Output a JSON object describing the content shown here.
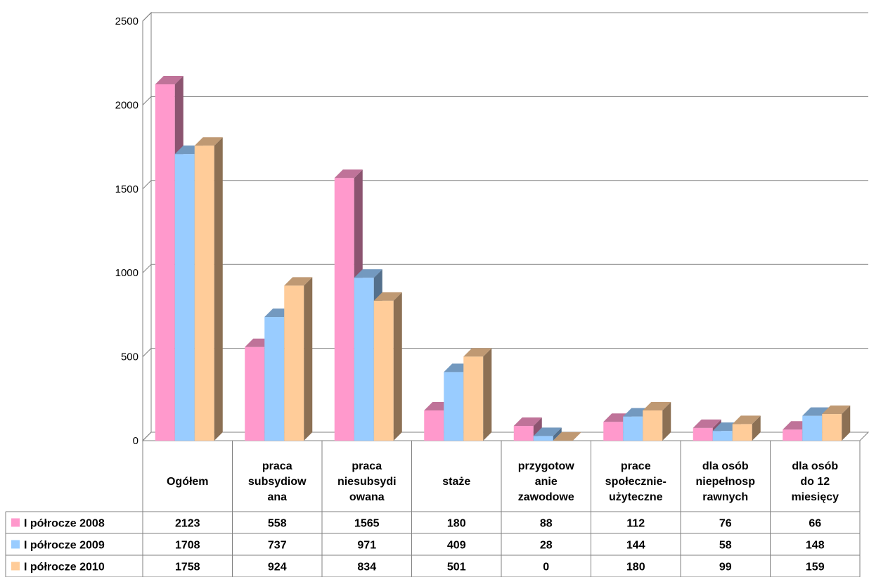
{
  "chart_data": {
    "type": "bar",
    "title": "",
    "xlabel": "",
    "ylabel": "",
    "ylim": [
      0,
      2500
    ],
    "yticks": [
      0,
      500,
      1000,
      1500,
      2000,
      2500
    ],
    "grid": true,
    "legend": "left of data table",
    "categories": [
      [
        "Ogółem"
      ],
      [
        "praca",
        "subsydiow",
        "ana"
      ],
      [
        "praca",
        "niesubsydi",
        "owana"
      ],
      [
        "staże"
      ],
      [
        "przygotow",
        "anie",
        "zawodowe"
      ],
      [
        "prace",
        "społecznie-",
        "użyteczne"
      ],
      [
        "dla osób",
        "niepełnosp",
        "rawnych"
      ],
      [
        "dla osób",
        "do 12",
        "miesięcy"
      ]
    ],
    "series": [
      {
        "name": "I półrocze 2008",
        "color": "#ff99cc",
        "values": [
          2123,
          558,
          1565,
          180,
          88,
          112,
          76,
          66
        ]
      },
      {
        "name": "I półrocze 2009",
        "color": "#99ccff",
        "values": [
          1708,
          737,
          971,
          409,
          28,
          144,
          58,
          148
        ]
      },
      {
        "name": "I półrocze 2010",
        "color": "#ffcc99",
        "values": [
          1758,
          924,
          834,
          501,
          0,
          180,
          99,
          159
        ]
      }
    ]
  }
}
